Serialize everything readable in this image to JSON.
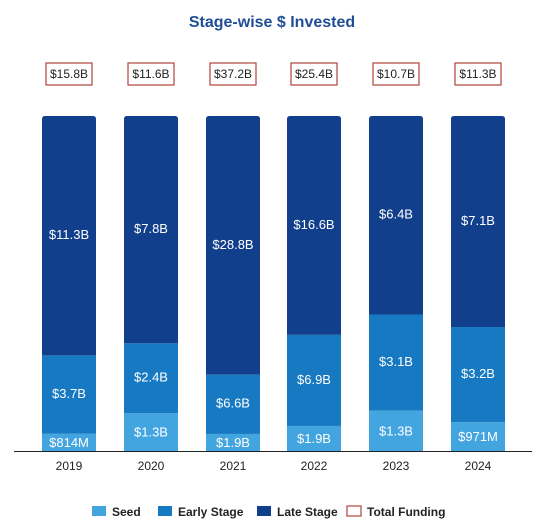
{
  "chart_data": {
    "type": "bar",
    "stacked": true,
    "title": "Stage-wise $ Invested",
    "categories": [
      "2019",
      "2020",
      "2021",
      "2022",
      "2023",
      "2024"
    ],
    "series": [
      {
        "name": "Seed",
        "values": [
          0.814,
          1.3,
          1.9,
          1.9,
          1.3,
          0.971
        ],
        "labels": [
          "$814M",
          "$1.3B",
          "$1.9B",
          "$1.9B",
          "$1.3B",
          "$971M"
        ]
      },
      {
        "name": "Early Stage",
        "values": [
          3.7,
          2.4,
          6.6,
          6.9,
          3.1,
          3.2
        ],
        "labels": [
          "$3.7B",
          "$2.4B",
          "$6.6B",
          "$6.9B",
          "$3.1B",
          "$3.2B"
        ]
      },
      {
        "name": "Late Stage",
        "values": [
          11.3,
          7.8,
          28.8,
          16.6,
          6.4,
          7.1
        ],
        "labels": [
          "$11.3B",
          "$7.8B",
          "$28.8B",
          "$16.6B",
          "$6.4B",
          "$7.1B"
        ]
      }
    ],
    "totals": {
      "name": "Total Funding",
      "values": [
        15.8,
        11.6,
        37.2,
        25.4,
        10.7,
        11.3
      ],
      "labels": [
        "$15.8B",
        "$11.6B",
        "$37.2B",
        "$25.4B",
        "$10.7B",
        "$11.3B"
      ]
    },
    "normalized": true,
    "grid": false,
    "legend_position": "bottom",
    "colors": {
      "Seed": "#42a5e0",
      "Early Stage": "#1779c2",
      "Late Stage": "#123f8c",
      "total_box_border": "#b0443a",
      "title": "#1f4e96",
      "text": "#222222",
      "bar_label": "#ffffff"
    }
  }
}
